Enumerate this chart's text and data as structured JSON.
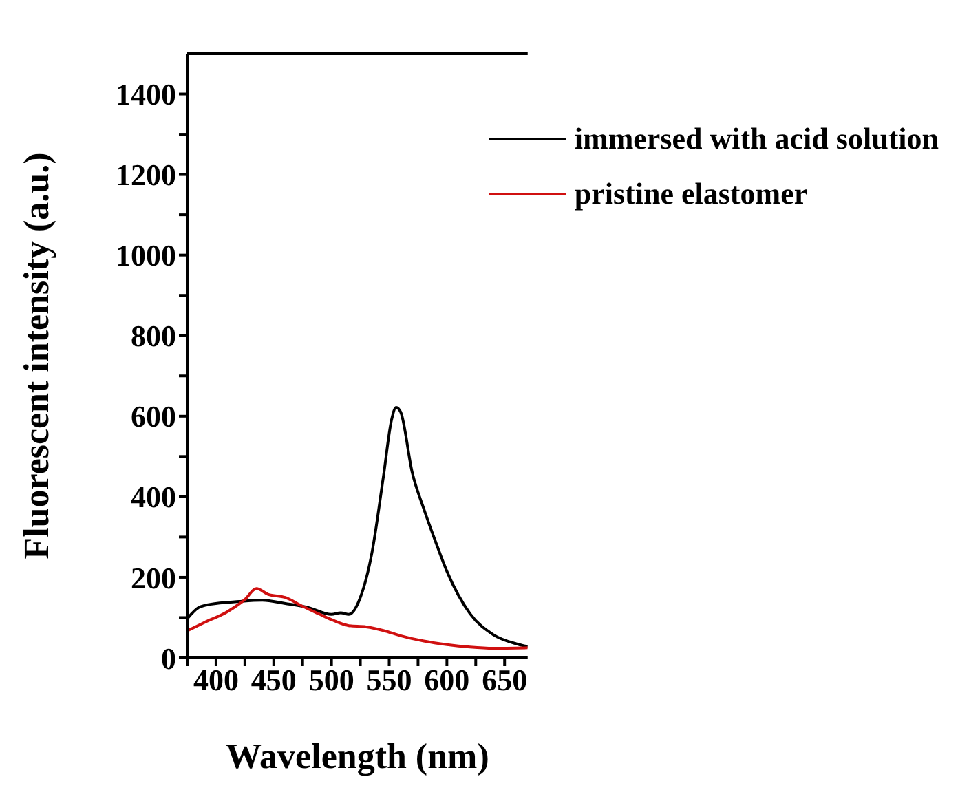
{
  "chart_data": {
    "type": "line",
    "xlabel": "Wavelength (nm)",
    "ylabel": "Fluorescent intensity (a.u.)",
    "xlim": [
      375,
      670
    ],
    "ylim": [
      0,
      1500
    ],
    "xticks": [
      {
        "value": 375,
        "label": null
      },
      400,
      {
        "value": 425,
        "label": null
      },
      450,
      {
        "value": 475,
        "label": null
      },
      500,
      {
        "value": 525,
        "label": null
      },
      550,
      {
        "value": 575,
        "label": null
      },
      600,
      {
        "value": 625,
        "label": null
      },
      650
    ],
    "yticks": [
      0,
      {
        "value": 100,
        "label": null
      },
      200,
      {
        "value": 300,
        "label": null
      },
      400,
      {
        "value": 500,
        "label": null
      },
      600,
      {
        "value": 700,
        "label": null
      },
      800,
      {
        "value": 900,
        "label": null
      },
      1000,
      {
        "value": 1100,
        "label": null
      },
      1200,
      {
        "value": 1300,
        "label": null
      },
      1400
    ],
    "legend": "top right",
    "marker": "none",
    "line_style": "solid",
    "series": [
      {
        "name": "immersed with acid solution",
        "color": "#000000",
        "x": [
          375,
          385,
          395,
          420,
          440,
          460,
          480,
          500,
          508,
          515,
          525,
          535,
          545,
          552,
          556,
          560,
          570,
          580,
          590,
          600,
          620,
          640,
          660,
          670
        ],
        "values": [
          97,
          125,
          133,
          140,
          143,
          135,
          125,
          108,
          112,
          108,
          150,
          260,
          450,
          590,
          622,
          610,
          460,
          370,
          290,
          215,
          110,
          58,
          35,
          28
        ]
      },
      {
        "name": "pristine elastomer",
        "color": "#d01010",
        "x": [
          375,
          390,
          410,
          425,
          435,
          445,
          460,
          475,
          490,
          500,
          515,
          530,
          545,
          560,
          580,
          600,
          620,
          640,
          670
        ],
        "values": [
          67,
          88,
          115,
          145,
          172,
          158,
          150,
          128,
          108,
          95,
          80,
          77,
          68,
          55,
          42,
          33,
          27,
          24,
          25
        ]
      }
    ]
  }
}
